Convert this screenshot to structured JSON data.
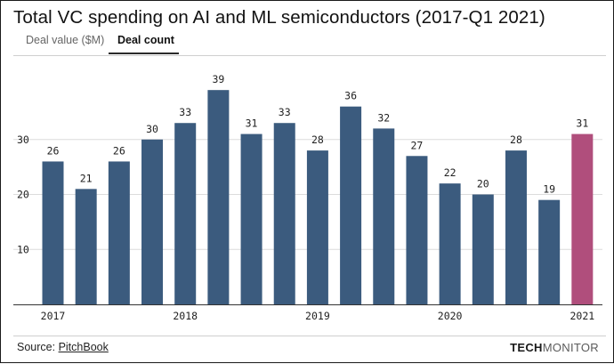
{
  "chart_data": {
    "type": "bar",
    "title": "Total VC spending on AI and ML semiconductors (2017-Q1 2021)",
    "tabs": [
      {
        "label": "Deal value ($M)",
        "active": false
      },
      {
        "label": "Deal count",
        "active": true
      }
    ],
    "categories": [
      "2017 Q1",
      "2017 Q2",
      "2017 Q3",
      "2017 Q4",
      "2018 Q1",
      "2018 Q2",
      "2018 Q3",
      "2018 Q4",
      "2019 Q1",
      "2019 Q2",
      "2019 Q3",
      "2019 Q4",
      "2020 Q1",
      "2020 Q2",
      "2020 Q3",
      "2020 Q4",
      "2021 Q1"
    ],
    "values": [
      26,
      21,
      26,
      30,
      33,
      39,
      31,
      33,
      28,
      36,
      32,
      27,
      22,
      20,
      28,
      19,
      31
    ],
    "highlight_index": 16,
    "x_tick_labels": [
      {
        "index": 0,
        "label": "2017"
      },
      {
        "index": 4,
        "label": "2018"
      },
      {
        "index": 8,
        "label": "2019"
      },
      {
        "index": 12,
        "label": "2020"
      },
      {
        "index": 16,
        "label": "2021"
      }
    ],
    "y_ticks": [
      10,
      20,
      30
    ],
    "ylim": [
      0,
      40
    ],
    "xlabel": "",
    "ylabel": "",
    "grid": true,
    "colors": {
      "bar": "#3b5b7e",
      "highlight": "#b04e7c",
      "grid": "#dcdcdc"
    }
  },
  "footer": {
    "source_prefix": "Source: ",
    "source_link": "PitchBook",
    "brand_bold": "TECH",
    "brand_light": "MONITOR"
  }
}
